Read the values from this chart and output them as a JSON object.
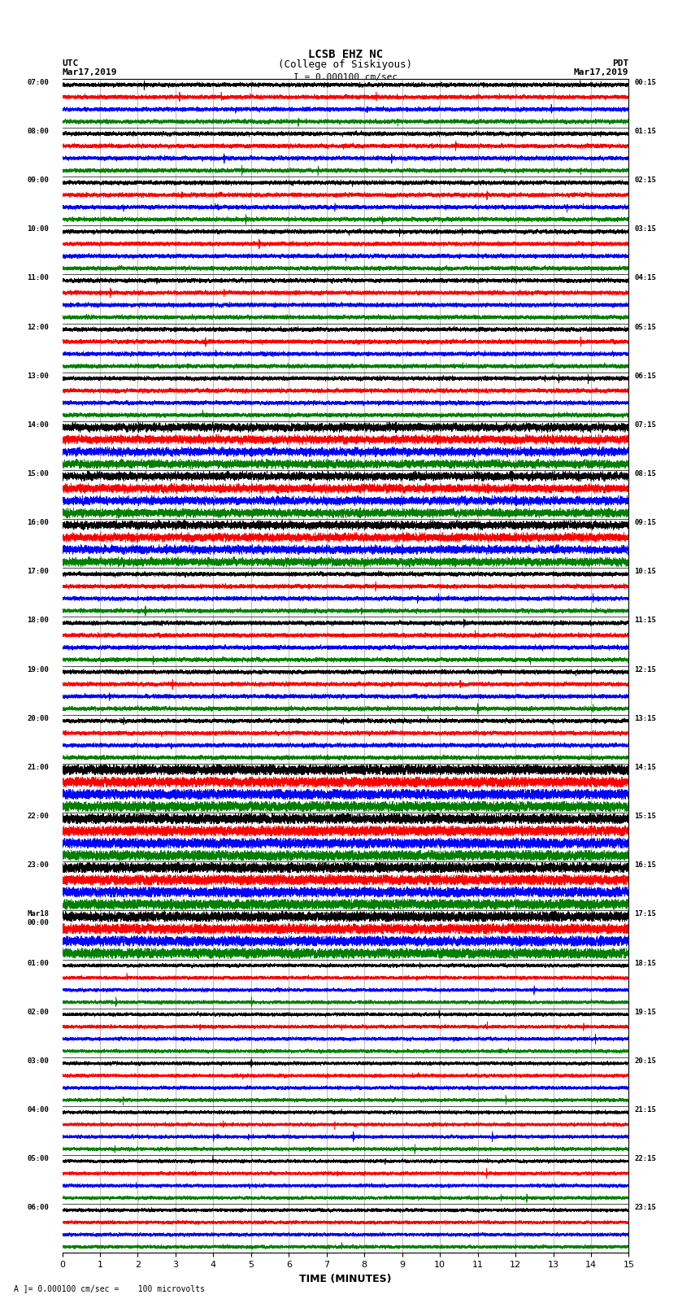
{
  "title_line1": "LCSB EHZ NC",
  "title_line2": "(College of Siskiyous)",
  "scale_label": "I = 0.000100 cm/sec",
  "utc_label": "UTC\nMar17,2019",
  "pdt_label": "PDT\nMar17,2019",
  "bottom_label": "A ]= 0.000100 cm/sec =    100 microvolts",
  "xlabel": "TIME (MINUTES)",
  "left_times": [
    "07:00",
    "08:00",
    "09:00",
    "10:00",
    "11:00",
    "12:00",
    "13:00",
    "14:00",
    "15:00",
    "16:00",
    "17:00",
    "18:00",
    "19:00",
    "20:00",
    "21:00",
    "22:00",
    "23:00",
    "Mar18\n00:00",
    "01:00",
    "02:00",
    "03:00",
    "04:00",
    "05:00",
    "06:00"
  ],
  "right_times": [
    "00:15",
    "01:15",
    "02:15",
    "03:15",
    "04:15",
    "05:15",
    "06:15",
    "07:15",
    "08:15",
    "09:15",
    "10:15",
    "11:15",
    "12:15",
    "13:15",
    "14:15",
    "15:15",
    "16:15",
    "17:15",
    "18:15",
    "19:15",
    "20:15",
    "21:15",
    "22:15",
    "23:15"
  ],
  "colors": [
    "black",
    "red",
    "blue",
    "green"
  ],
  "n_rows": 24,
  "traces_per_row": 4,
  "minutes": 15,
  "sample_rate": 50,
  "bg_color": "#ffffff",
  "fig_width": 8.5,
  "fig_height": 16.13,
  "noise_seed": 42
}
